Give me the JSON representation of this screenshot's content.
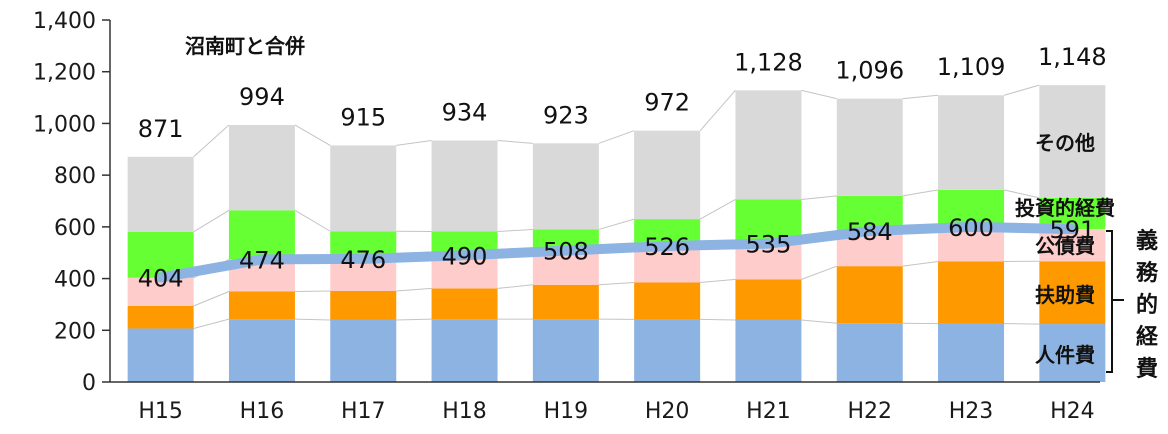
{
  "chart_data": {
    "type": "bar",
    "stacked": true,
    "categories": [
      "H15",
      "H16",
      "H17",
      "H18",
      "H19",
      "H20",
      "H21",
      "H22",
      "H23",
      "H24"
    ],
    "series": [
      {
        "name": "人件費",
        "color": "#8db3e2",
        "values": [
          207,
          243,
          240,
          243,
          243,
          242,
          240,
          227,
          226,
          224
        ]
      },
      {
        "name": "扶助費",
        "color": "#ff9900",
        "values": [
          87,
          107,
          112,
          119,
          133,
          143,
          157,
          221,
          240,
          243
        ]
      },
      {
        "name": "公債費",
        "color": "#ffcccc",
        "values": [
          109,
          124,
          124,
          128,
          134,
          142,
          138,
          137,
          134,
          124
        ]
      },
      {
        "name": "投資的経費",
        "color": "#66ff33",
        "values": [
          178,
          190,
          107,
          92,
          80,
          103,
          171,
          135,
          143,
          121
        ]
      },
      {
        "name": "その他",
        "color": "#d9d9d9",
        "values": [
          290,
          330,
          332,
          352,
          333,
          342,
          422,
          376,
          366,
          436
        ]
      }
    ],
    "totals": [
      "871",
      "994",
      "915",
      "934",
      "923",
      "972",
      "1,128",
      "1,096",
      "1,109",
      "1,148"
    ],
    "line": {
      "color": "#8db3e2",
      "values": [
        404,
        474,
        476,
        490,
        508,
        526,
        535,
        584,
        600,
        591
      ]
    },
    "y_ticks": [
      "0",
      "200",
      "400",
      "600",
      "800",
      "1,000",
      "1,200",
      "1,400"
    ],
    "ylim": [
      0,
      1400
    ],
    "annotation": "沼南町と合併",
    "bracket_label": [
      "義",
      "務",
      "的",
      "経",
      "費"
    ],
    "grid": false
  }
}
